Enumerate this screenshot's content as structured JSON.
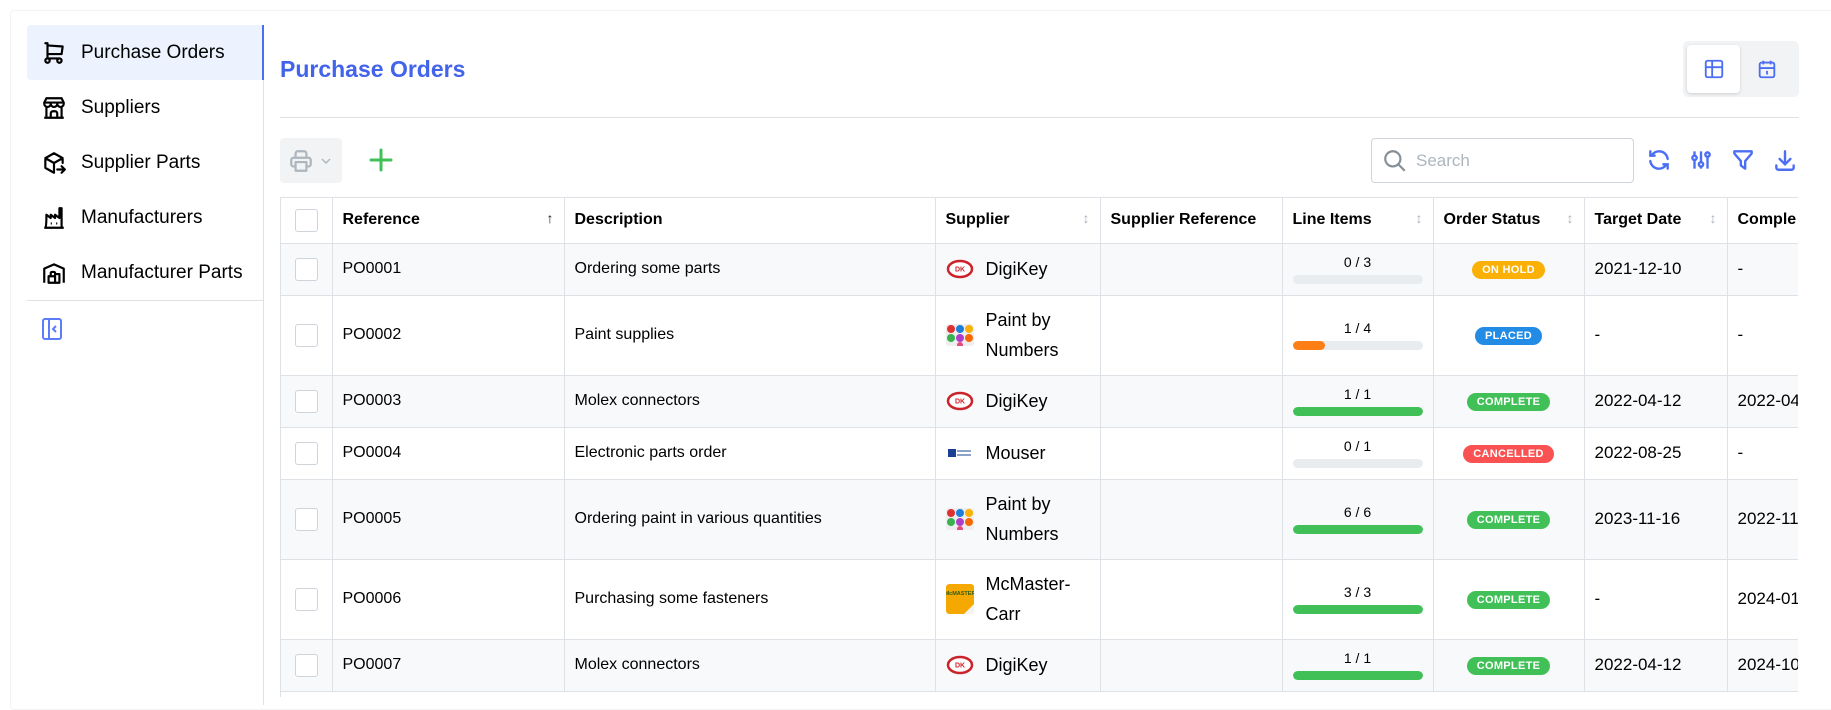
{
  "sidebar": {
    "items": [
      {
        "label": "Purchase Orders",
        "icon": "shopping-cart-icon",
        "active": true
      },
      {
        "label": "Suppliers",
        "icon": "building-store-icon"
      },
      {
        "label": "Supplier Parts",
        "icon": "package-export-icon"
      },
      {
        "label": "Manufacturers",
        "icon": "building-factory-icon"
      },
      {
        "label": "Manufacturer Parts",
        "icon": "building-warehouse-icon"
      }
    ],
    "collapse_icon": "sidebar-collapse-icon"
  },
  "page": {
    "title": "Purchase Orders"
  },
  "view_toggle": {
    "options": [
      "table-view-icon",
      "calendar-view-icon"
    ],
    "selected": "table-view-icon"
  },
  "toolbar": {
    "search_placeholder": "Search",
    "search_value": ""
  },
  "colors": {
    "accent": "#4263eb",
    "on_hold": "#fab005",
    "placed": "#228be6",
    "complete": "#40c057",
    "cancelled": "#fa5252",
    "progress_partial": "#fd7e14"
  },
  "table": {
    "columns": [
      "Reference",
      "Description",
      "Supplier",
      "Supplier Reference",
      "Line Items",
      "Order Status",
      "Target Date",
      "Comple"
    ],
    "rows": [
      {
        "reference": "PO0001",
        "description": "Ordering some parts",
        "supplier": "DigiKey",
        "logo": "digikey",
        "supplier_reference": "",
        "line_items": "0 / 3",
        "progress": 0,
        "status": "ON HOLD",
        "status_color": "#fab005",
        "target_date": "2021-12-10",
        "complete": "-"
      },
      {
        "reference": "PO0002",
        "description": "Paint supplies",
        "supplier": "Paint by Numbers",
        "logo": "paint",
        "supplier_reference": "",
        "line_items": "1 / 4",
        "progress": 25,
        "status": "PLACED",
        "status_color": "#228be6",
        "target_date": "-",
        "complete": "-"
      },
      {
        "reference": "PO0003",
        "description": "Molex connectors",
        "supplier": "DigiKey",
        "logo": "digikey",
        "supplier_reference": "",
        "line_items": "1 / 1",
        "progress": 100,
        "status": "COMPLETE",
        "status_color": "#40c057",
        "target_date": "2022-04-12",
        "complete": "2022-04"
      },
      {
        "reference": "PO0004",
        "description": "Electronic parts order",
        "supplier": "Mouser",
        "logo": "mouser",
        "supplier_reference": "",
        "line_items": "0 / 1",
        "progress": 0,
        "status": "CANCELLED",
        "status_color": "#fa5252",
        "target_date": "2022-08-25",
        "complete": "-"
      },
      {
        "reference": "PO0005",
        "description": "Ordering paint in various quantities",
        "supplier": "Paint by Numbers",
        "logo": "paint",
        "supplier_reference": "",
        "line_items": "6 / 6",
        "progress": 100,
        "status": "COMPLETE",
        "status_color": "#40c057",
        "target_date": "2023-11-16",
        "complete": "2022-11"
      },
      {
        "reference": "PO0006",
        "description": "Purchasing some fasteners",
        "supplier": "McMaster-Carr",
        "logo": "mcmaster",
        "supplier_reference": "",
        "line_items": "3 / 3",
        "progress": 100,
        "status": "COMPLETE",
        "status_color": "#40c057",
        "target_date": "-",
        "complete": "2024-01"
      },
      {
        "reference": "PO0007",
        "description": "Molex connectors",
        "supplier": "DigiKey",
        "logo": "digikey",
        "supplier_reference": "",
        "line_items": "1 / 1",
        "progress": 100,
        "status": "COMPLETE",
        "status_color": "#40c057",
        "target_date": "2022-04-12",
        "complete": "2024-10"
      }
    ]
  }
}
